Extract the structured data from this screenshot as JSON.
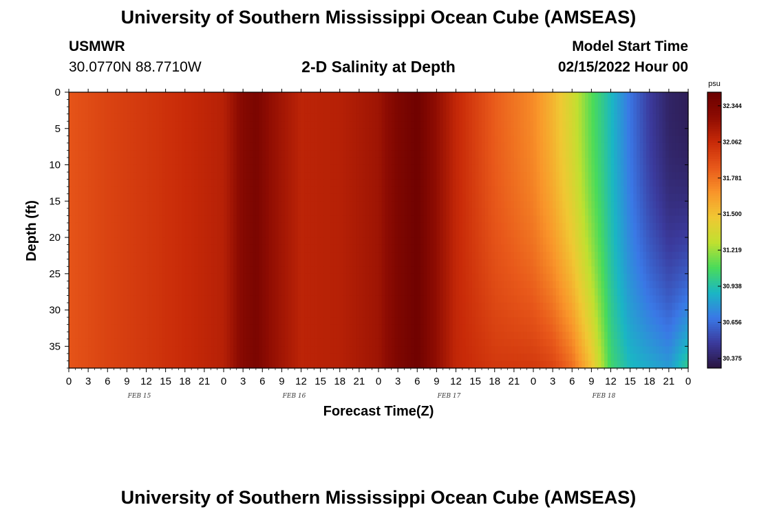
{
  "header": {
    "title": "University of Southern Mississippi Ocean Cube (AMSEAS)",
    "station_id": "USMWR",
    "station_location": "30.0770N  88.7710W",
    "subtitle": "2-D Salinity at Depth",
    "model_start_label": "Model Start Time",
    "model_start_value": "02/15/2022 Hour 00"
  },
  "footer": {
    "title": "University of Southern Mississippi Ocean Cube (AMSEAS)"
  },
  "chart_data": {
    "type": "heatmap",
    "title": "2-D Salinity at Depth",
    "xlabel": "Forecast Time(Z)",
    "ylabel": "Depth (ft)",
    "x_tick_labels": [
      "0",
      "3",
      "6",
      "9",
      "12",
      "15",
      "18",
      "21",
      "0",
      "3",
      "6",
      "9",
      "12",
      "15",
      "18",
      "21",
      "0",
      "3",
      "6",
      "9",
      "12",
      "15",
      "18",
      "21",
      "0",
      "3",
      "6",
      "9",
      "12",
      "15",
      "18",
      "21",
      "0"
    ],
    "x_day_labels": [
      "FEB 15",
      "FEB 16",
      "FEB 17",
      "FEB 18"
    ],
    "x_hours_range": [
      0,
      96
    ],
    "y_ticks": [
      0,
      5,
      10,
      15,
      20,
      25,
      30,
      35
    ],
    "ylim": [
      0,
      38
    ],
    "y_inverted": true,
    "colorbar": {
      "unit": "psu",
      "ticks": [
        "32.344",
        "32.062",
        "31.781",
        "31.500",
        "31.219",
        "30.938",
        "30.656",
        "30.375"
      ],
      "range": [
        30.3,
        32.45
      ],
      "colors": [
        "#2a1540",
        "#3b3a9c",
        "#3a78e6",
        "#1ab6c4",
        "#4adb5a",
        "#c0e030",
        "#f0c833",
        "#f9952a",
        "#e8581a",
        "#c82a08",
        "#8e0c02",
        "#6a0000"
      ]
    },
    "surface_salinity_profile": {
      "hours": [
        0,
        6,
        12,
        18,
        24,
        27,
        29,
        31,
        36,
        42,
        48,
        51,
        54,
        56,
        60,
        66,
        72,
        75,
        78,
        81,
        84,
        87,
        90,
        93,
        96
      ],
      "psu": [
        31.88,
        31.95,
        32.0,
        32.06,
        32.12,
        32.3,
        32.36,
        32.25,
        32.1,
        32.12,
        32.2,
        32.34,
        32.42,
        32.3,
        32.08,
        31.85,
        31.7,
        31.55,
        31.35,
        31.1,
        30.9,
        30.68,
        30.5,
        30.38,
        30.35
      ]
    },
    "bottom_salinity_profile": {
      "hours": [
        0,
        6,
        12,
        18,
        24,
        27,
        29,
        31,
        36,
        42,
        48,
        51,
        54,
        56,
        60,
        66,
        72,
        75,
        78,
        81,
        84,
        87,
        90,
        93,
        96
      ],
      "psu": [
        31.88,
        31.95,
        32.0,
        32.06,
        32.12,
        32.3,
        32.36,
        32.25,
        32.1,
        32.12,
        32.2,
        32.34,
        32.42,
        32.3,
        32.08,
        32.0,
        32.0,
        31.95,
        31.8,
        31.5,
        31.05,
        30.9,
        30.85,
        30.8,
        31.0
      ]
    }
  }
}
